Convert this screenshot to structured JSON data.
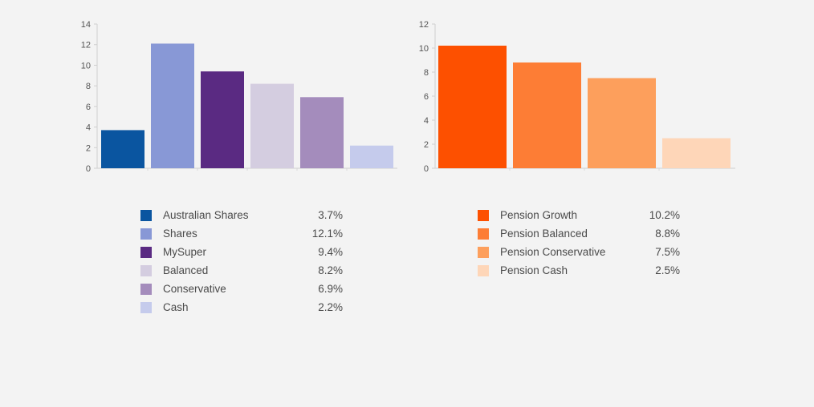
{
  "chart_data": [
    {
      "type": "bar",
      "categories": [
        "Australian Shares",
        "Shares",
        "MySuper",
        "Balanced",
        "Conservative",
        "Cash"
      ],
      "values": [
        3.7,
        12.1,
        9.4,
        8.2,
        6.9,
        2.2
      ],
      "value_labels": [
        "3.7%",
        "12.1%",
        "9.4%",
        "8.2%",
        "6.9%",
        "2.2%"
      ],
      "colors": [
        "#0a55a0",
        "#8898d6",
        "#5a2a82",
        "#d4cde0",
        "#a48cbc",
        "#c5cbec"
      ],
      "ylim": [
        0,
        14
      ],
      "yticks": [
        0,
        2,
        4,
        6,
        8,
        10,
        12,
        14
      ],
      "ytick_labels": [
        "0",
        "2",
        "4",
        "6",
        "8",
        "10",
        "12",
        "14"
      ],
      "grid": false,
      "legend_position": "bottom"
    },
    {
      "type": "bar",
      "categories": [
        "Pension Growth",
        "Pension Balanced",
        "Pension Conservative",
        "Pension Cash"
      ],
      "values": [
        10.2,
        8.8,
        7.5,
        2.5
      ],
      "value_labels": [
        "10.2%",
        "8.8%",
        "7.5%",
        "2.5%"
      ],
      "colors": [
        "#fd5000",
        "#fd7d35",
        "#fd9f5c",
        "#fed6b8"
      ],
      "ylim": [
        0,
        12
      ],
      "yticks": [
        0,
        2,
        4,
        6,
        8,
        10,
        12
      ],
      "ytick_labels": [
        "0",
        "2",
        "4",
        "6",
        "8",
        "10",
        "12"
      ],
      "grid": false,
      "legend_position": "bottom"
    }
  ]
}
